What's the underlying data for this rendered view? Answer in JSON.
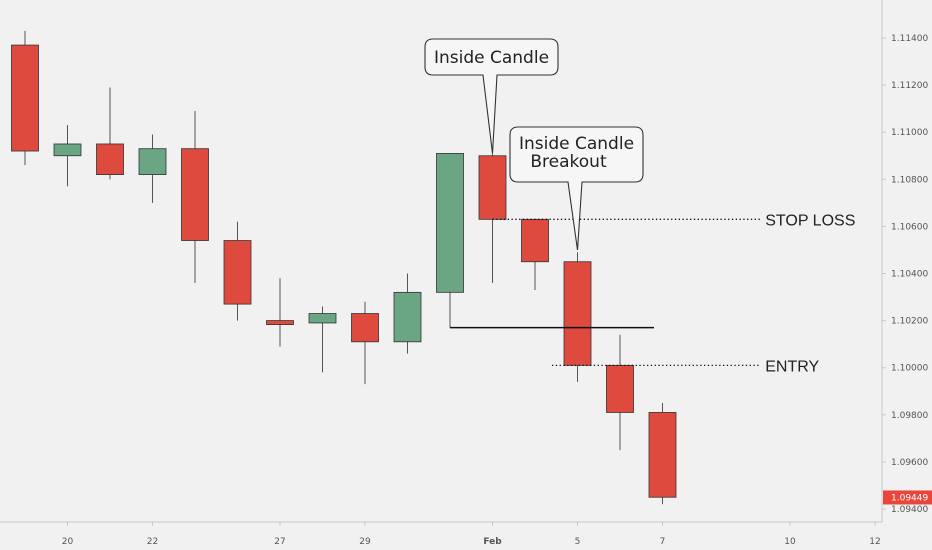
{
  "colors": {
    "background": "#f1f1f1",
    "bull": "#6aa584",
    "bear": "#de4b3e",
    "wick": "#555555",
    "price_tag": "#e8463a"
  },
  "chart_data": {
    "type": "candlestick",
    "symbol": "",
    "price_axis": {
      "position": "right",
      "ticks": [
        "1.11400",
        "1.11200",
        "1.11000",
        "1.10800",
        "1.10600",
        "1.10400",
        "1.10200",
        "1.10000",
        "1.09800",
        "1.09600",
        "1.09400"
      ],
      "ylim": [
        1.0935,
        1.1158
      ]
    },
    "time_axis": {
      "ticks": [
        {
          "label": "20",
          "index": 1
        },
        {
          "label": "22",
          "index": 3
        },
        {
          "label": "27",
          "index": 6
        },
        {
          "label": "29",
          "index": 8
        },
        {
          "label": "Feb",
          "index": 11,
          "bold": true
        },
        {
          "label": "5",
          "index": 13
        },
        {
          "label": "7",
          "index": 15
        },
        {
          "label": "10",
          "index": 18
        },
        {
          "label": "12",
          "index": 20
        }
      ]
    },
    "candles": [
      {
        "index": 0,
        "open": 1.1137,
        "high": 1.1143,
        "low": 1.1086,
        "close": 1.1092
      },
      {
        "index": 1,
        "open": 1.109,
        "high": 1.1103,
        "low": 1.1077,
        "close": 1.1095
      },
      {
        "index": 2,
        "open": 1.1095,
        "high": 1.1119,
        "low": 1.108,
        "close": 1.1082
      },
      {
        "index": 3,
        "open": 1.1082,
        "high": 1.1099,
        "low": 1.107,
        "close": 1.1093
      },
      {
        "index": 4,
        "open": 1.1093,
        "high": 1.1109,
        "low": 1.1036,
        "close": 1.1054
      },
      {
        "index": 5,
        "open": 1.1054,
        "high": 1.1062,
        "low": 1.102,
        "close": 1.1027
      },
      {
        "index": 6,
        "open": 1.102,
        "high": 1.1038,
        "low": 1.1009,
        "close": 1.1019
      },
      {
        "index": 7,
        "open": 1.1019,
        "high": 1.1026,
        "low": 1.0998,
        "close": 1.1023
      },
      {
        "index": 8,
        "open": 1.1023,
        "high": 1.1028,
        "low": 1.0993,
        "close": 1.1011
      },
      {
        "index": 9,
        "open": 1.1011,
        "high": 1.104,
        "low": 1.1006,
        "close": 1.1032
      },
      {
        "index": 10,
        "open": 1.1032,
        "high": 1.1091,
        "low": 1.1017,
        "close": 1.1091
      },
      {
        "index": 11,
        "open": 1.109,
        "high": 1.1091,
        "low": 1.1036,
        "close": 1.1063
      },
      {
        "index": 12,
        "open": 1.1063,
        "high": 1.1063,
        "low": 1.1033,
        "close": 1.1045
      },
      {
        "index": 13,
        "open": 1.1045,
        "high": 1.1049,
        "low": 1.0994,
        "close": 1.1001
      },
      {
        "index": 14,
        "open": 1.1001,
        "high": 1.1014,
        "low": 1.0965,
        "close": 1.0981
      },
      {
        "index": 15,
        "open": 1.0981,
        "high": 1.0985,
        "low": 1.0942,
        "close": 1.0945
      }
    ],
    "current_price": {
      "label": "1.09449",
      "value": 1.09449
    },
    "levels": [
      {
        "name": "stop-loss",
        "label": "STOP LOSS",
        "price": 1.1063,
        "style": "dotted",
        "from_index": 11,
        "to_index": 17.3
      },
      {
        "name": "entry",
        "label": "ENTRY",
        "price": 1.1001,
        "style": "dotted",
        "from_index": 12.4,
        "to_index": 17.3
      },
      {
        "name": "inside-low",
        "label": "",
        "price": 1.1017,
        "style": "solid",
        "from_index": 10,
        "to_index": 14.8
      }
    ],
    "annotations": [
      {
        "name": "inside-candle-callout",
        "lines": [
          "Inside Candle"
        ],
        "target_index": 11,
        "target_price": 1.1091
      },
      {
        "name": "inside-candle-breakout-callout",
        "lines": [
          "Inside Candle",
          "Breakout"
        ],
        "target_index": 13,
        "target_price": 1.105
      }
    ]
  }
}
